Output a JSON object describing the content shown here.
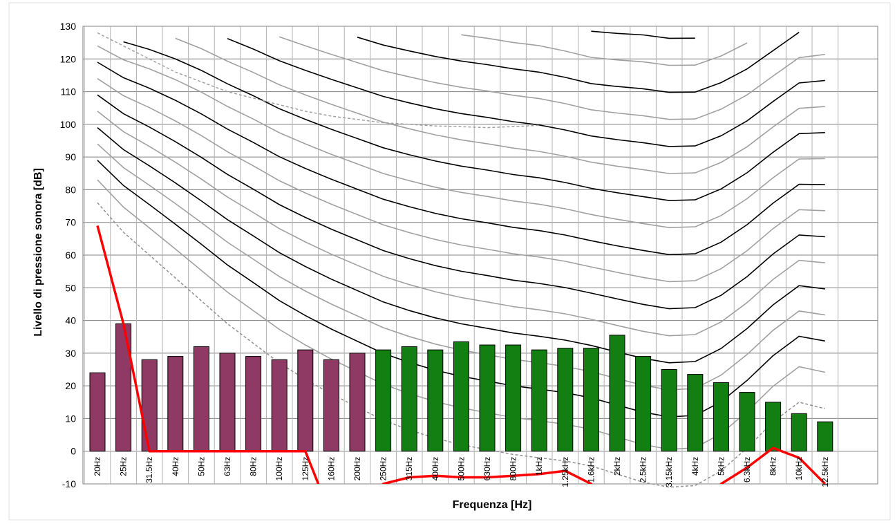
{
  "chart_data": {
    "type": "bar",
    "xlabel": "Frequenza [Hz]",
    "ylabel": "Livello di pressione sonora [dB]",
    "ylim": [
      -10,
      130
    ],
    "yticks": [
      -10,
      0,
      10,
      20,
      30,
      40,
      50,
      60,
      70,
      80,
      90,
      100,
      110,
      120,
      130
    ],
    "grid": true,
    "categories": [
      "20Hz",
      "25Hz",
      "31.5Hz",
      "40Hz",
      "50Hz",
      "63Hz",
      "80Hz",
      "100Hz",
      "125Hz",
      "160Hz",
      "200Hz",
      "250Hz",
      "315Hz",
      "400Hz",
      "500Hz",
      "630Hz",
      "800Hz",
      "1kHz",
      "1.25kHz",
      "1.6kHz",
      "2kHz",
      "2.5kHz",
      "3.15kHz",
      "4kHz",
      "5kHz",
      "6.3kHz",
      "8kHz",
      "10kHz",
      "12.5kHz"
    ],
    "values": [
      24,
      39,
      28,
      29,
      32,
      30,
      29,
      28,
      31,
      28,
      30,
      31,
      32,
      31,
      33.5,
      32.5,
      32.5,
      31,
      31.5,
      31.5,
      35.5,
      29,
      25,
      23.5,
      21,
      18,
      15,
      11.5,
      9
    ],
    "bar_colors": [
      "#8e3a64",
      "#8e3a64",
      "#8e3a64",
      "#8e3a64",
      "#8e3a64",
      "#8e3a64",
      "#8e3a64",
      "#8e3a64",
      "#8e3a64",
      "#8e3a64",
      "#8e3a64",
      "#137f13",
      "#137f13",
      "#137f13",
      "#137f13",
      "#137f13",
      "#137f13",
      "#137f13",
      "#137f13",
      "#137f13",
      "#137f13",
      "#137f13",
      "#137f13",
      "#137f13",
      "#137f13",
      "#137f13",
      "#137f13",
      "#137f13",
      "#137f13"
    ],
    "red_line": [
      69,
      39,
      0,
      0,
      0,
      0,
      0,
      0,
      0,
      -20,
      -20,
      -10,
      -8,
      -7.5,
      -8,
      -8,
      -7.5,
      -7,
      -6,
      -10,
      -20,
      -20,
      -20,
      -20,
      -10,
      -5,
      1,
      -2,
      -10
    ],
    "red_line_color": "#ff0000",
    "contours": {
      "color_dark": "#000000",
      "color_light": "#a0a0a0",
      "shape": [
        0,
        18,
        34,
        48,
        60,
        70,
        78,
        85,
        91,
        96,
        100,
        104,
        107,
        109,
        110.5,
        111.5,
        112,
        112,
        110.5,
        109.5,
        113.5,
        118,
        119,
        118,
        114,
        107,
        101,
        100,
        108
      ],
      "bottom": [
        76,
        67,
        60,
        53,
        46,
        39,
        33,
        27,
        22,
        17.5,
        13.5,
        9.5,
        6.5,
        4,
        2,
        0.5,
        -1,
        -2,
        -3,
        -4.5,
        -7,
        -9.5,
        -11,
        -10.5,
        -6,
        1,
        9,
        15,
        13
      ],
      "offsets": [
        7,
        13,
        18,
        23,
        28,
        33,
        38,
        43,
        48,
        53,
        58,
        63,
        68,
        73,
        78,
        83,
        88,
        93,
        98
      ],
      "dark_every": 2,
      "top_line": [
        128,
        124,
        120,
        116,
        113,
        110,
        108,
        106,
        104,
        102.5,
        101.5,
        100.5,
        100,
        99.5,
        99.3,
        99,
        99.3,
        99.7
      ],
      "upper_clip": [
        128,
        128,
        128,
        128,
        128,
        128,
        128,
        128,
        128,
        128,
        128,
        128,
        128,
        128,
        128,
        128,
        128,
        128,
        128,
        129,
        129,
        129,
        129,
        129,
        129,
        129,
        129,
        129,
        129
      ]
    }
  }
}
